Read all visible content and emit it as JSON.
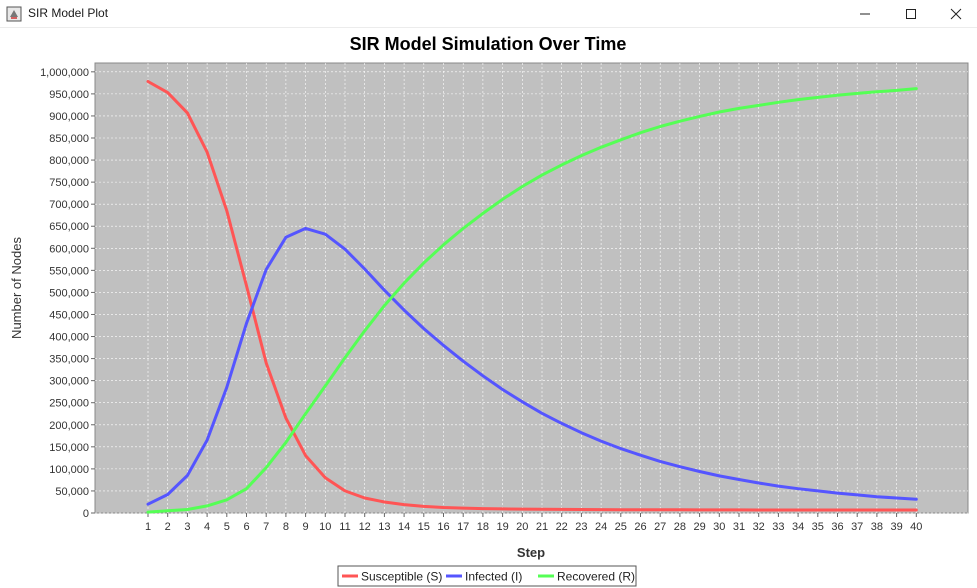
{
  "window": {
    "title": "SIR Model Plot",
    "icon": "java-app-icon",
    "controls": [
      "minimize-icon",
      "maximize-icon",
      "close-icon"
    ]
  },
  "chart_data": {
    "type": "line",
    "title": "SIR Model Simulation Over Time",
    "xlabel": "Step",
    "ylabel": "Number of Nodes",
    "x": [
      1,
      2,
      3,
      4,
      5,
      6,
      7,
      8,
      9,
      10,
      11,
      12,
      13,
      14,
      15,
      16,
      17,
      18,
      19,
      20,
      21,
      22,
      23,
      24,
      25,
      26,
      27,
      28,
      29,
      30,
      31,
      32,
      33,
      34,
      35,
      36,
      37,
      38,
      39,
      40
    ],
    "ylim": [
      0,
      1020000
    ],
    "yticks": [
      "0",
      "50,000",
      "100,000",
      "150,000",
      "200,000",
      "250,000",
      "300,000",
      "350,000",
      "400,000",
      "450,000",
      "500,000",
      "550,000",
      "600,000",
      "650,000",
      "700,000",
      "750,000",
      "800,000",
      "850,000",
      "900,000",
      "950,000",
      "1,000,000"
    ],
    "grid": true,
    "legend_position": "bottom",
    "plot_background": "#c0c0c0",
    "series": [
      {
        "name": "Susceptible (S)",
        "color": "#ff5555",
        "values": [
          978000,
          953000,
          907000,
          818000,
          685000,
          515000,
          340000,
          215000,
          130000,
          80000,
          50000,
          34000,
          25000,
          19000,
          15000,
          12500,
          11000,
          10000,
          9300,
          8800,
          8400,
          8100,
          7900,
          7700,
          7500,
          7400,
          7300,
          7200,
          7100,
          7000,
          7000,
          6900,
          6900,
          6800,
          6800,
          6800,
          6700,
          6700,
          6700,
          6700
        ]
      },
      {
        "name": "Infected (I)",
        "color": "#5555ff",
        "values": [
          20000,
          42000,
          85000,
          165000,
          285000,
          430000,
          552000,
          625000,
          645000,
          632000,
          598000,
          553000,
          505000,
          460000,
          418000,
          380000,
          344000,
          311000,
          280000,
          252000,
          226000,
          203000,
          182000,
          163000,
          146000,
          131000,
          117000,
          105000,
          94000,
          84000,
          76000,
          68000,
          61000,
          55000,
          50000,
          45000,
          41000,
          37000,
          34000,
          31000
        ]
      },
      {
        "name": "Recovered (R)",
        "color": "#55ff55",
        "values": [
          2000,
          5000,
          8000,
          16000,
          30000,
          55000,
          103000,
          160000,
          225000,
          288000,
          352000,
          413000,
          470000,
          521000,
          567000,
          608000,
          645000,
          679000,
          711000,
          740000,
          766000,
          789000,
          810000,
          829000,
          846000,
          862000,
          876000,
          888000,
          899000,
          909000,
          917000,
          924000,
          931000,
          937000,
          942000,
          947000,
          951000,
          955000,
          958000,
          962000
        ]
      }
    ]
  }
}
